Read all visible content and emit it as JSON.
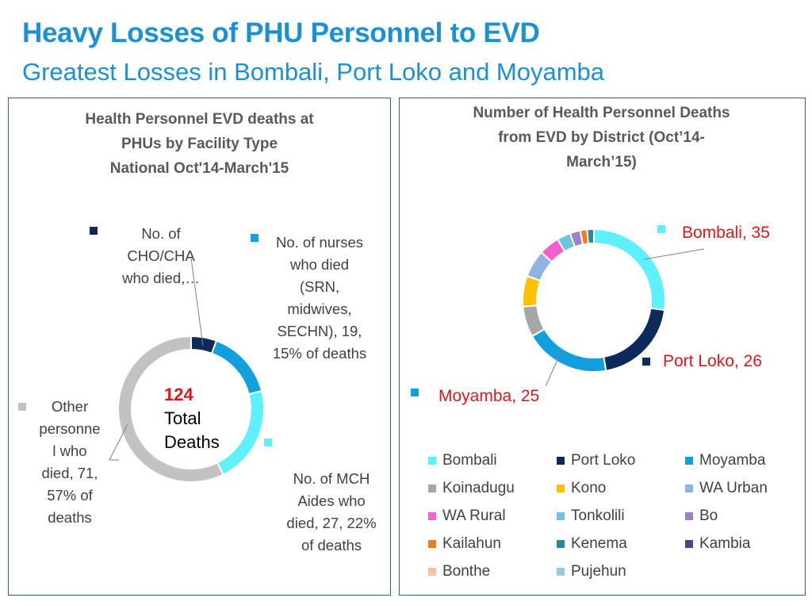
{
  "header": {
    "title": "Heavy Losses of PHU Personnel to EVD",
    "subtitle": "Greatest Losses in Bombali, Port Loko and Moyamba"
  },
  "left": {
    "chart_title_lines": [
      "Health Personnel EVD deaths at",
      "PHUs by Facility Type",
      "National Oct'14-March'15"
    ],
    "center_number": "124",
    "center_lines": [
      "Total",
      "Deaths"
    ],
    "labels": {
      "cho": [
        "No. of",
        "CHO/CHA",
        "who died,…"
      ],
      "nurses": [
        "No. of nurses",
        "who died",
        "(SRN,",
        "midwives,",
        "SECHN), 19,",
        "15% of deaths"
      ],
      "mch": [
        "No. of MCH",
        "Aides who",
        "died, 27, 22%",
        "of deaths"
      ],
      "other": [
        "Other",
        "personne",
        "l who",
        "died, 71,",
        "57% of",
        "deaths"
      ]
    }
  },
  "right": {
    "chart_title_lines": [
      "Number of Health Personnel Deaths",
      "from EVD by District (Oct’14-",
      "March’15)"
    ],
    "labels": {
      "bombali": "Bombali, 35",
      "port_loko": "Port Loko, 26",
      "moyamba": "Moyamba, 25"
    }
  },
  "chart_data": [
    {
      "type": "pie",
      "title": "Health Personnel EVD deaths at PHUs by Facility Type National Oct'14-March'15",
      "categories": [
        "No. of CHO/CHA who died",
        "No. of nurses who died (SRN, midwives, SECHN)",
        "No. of MCH Aides who died",
        "Other personnel who died"
      ],
      "values": [
        7,
        19,
        27,
        71
      ],
      "percents": [
        null,
        15,
        22,
        57
      ],
      "colors": [
        "#0e2a5c",
        "#119fe0",
        "#5ef0fb",
        "#c2c2c2"
      ],
      "total": 124,
      "donut": true
    },
    {
      "type": "pie",
      "title": "Number of Health Personnel Deaths from EVD by District (Oct’14-March’15)",
      "categories": [
        "Bombali",
        "Port Loko",
        "Moyamba",
        "Koinadugu",
        "Kono",
        "WA Urban",
        "WA Rural",
        "Tonkolili",
        "Bo",
        "Kailahun",
        "Kenema",
        "Kambia",
        "Bonthe",
        "Pujehun"
      ],
      "values": [
        35,
        26,
        25,
        9,
        9,
        8,
        6,
        4,
        3,
        2,
        2,
        0,
        0,
        0
      ],
      "colors": [
        "#5ef0fb",
        "#0e2a5c",
        "#119fe0",
        "#a6a6a6",
        "#ffc000",
        "#8eb4e3",
        "#f65fd0",
        "#6ac4de",
        "#9c82c4",
        "#f47b20",
        "#31849b",
        "#5c3c82",
        "#f9c49e",
        "#93cddd"
      ],
      "donut": true,
      "legend": "bottom"
    }
  ]
}
